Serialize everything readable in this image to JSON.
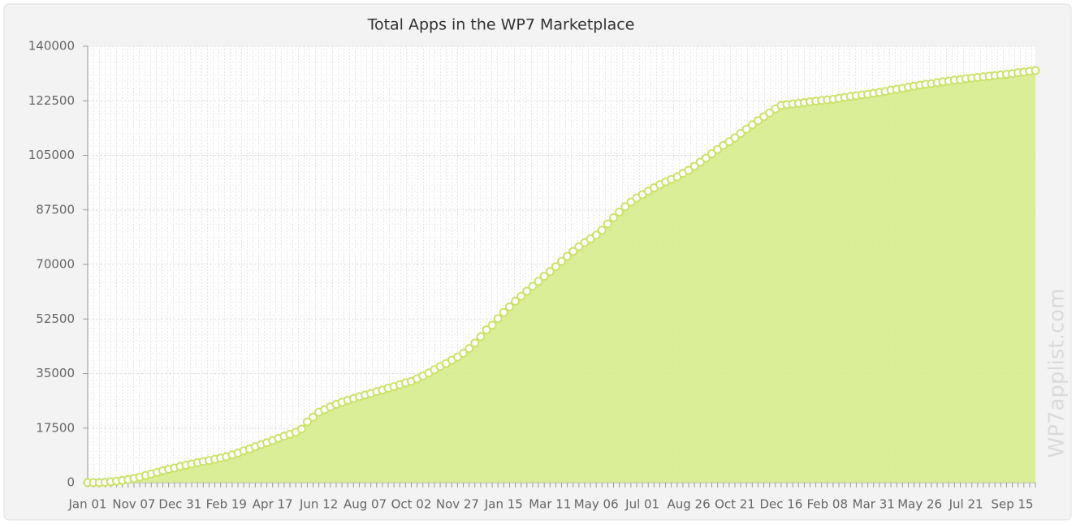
{
  "chart_data": {
    "type": "area",
    "title": "Total Apps in the WP7 Marketplace",
    "watermark": "WP7applist.com",
    "categories": [
      "Jan 01",
      null,
      null,
      null,
      null,
      null,
      null,
      null,
      "Nov 07",
      null,
      null,
      null,
      null,
      null,
      null,
      null,
      "Dec 31",
      null,
      null,
      null,
      null,
      null,
      null,
      null,
      "Feb 19",
      null,
      null,
      null,
      null,
      null,
      null,
      null,
      "Apr 17",
      null,
      null,
      null,
      null,
      null,
      null,
      null,
      "Jun 12",
      null,
      null,
      null,
      null,
      null,
      null,
      null,
      "Aug 07",
      null,
      null,
      null,
      null,
      null,
      null,
      null,
      "Oct 02",
      null,
      null,
      null,
      null,
      null,
      null,
      null,
      "Nov 27",
      null,
      null,
      null,
      null,
      null,
      null,
      null,
      "Jan 15",
      null,
      null,
      null,
      null,
      null,
      null,
      null,
      "Mar 11",
      null,
      null,
      null,
      null,
      null,
      null,
      null,
      "May 06",
      null,
      null,
      null,
      null,
      null,
      null,
      null,
      "Jul 01",
      null,
      null,
      null,
      null,
      null,
      null,
      null,
      "Aug 26",
      null,
      null,
      null,
      null,
      null,
      null,
      null,
      "Oct 21",
      null,
      null,
      null,
      null,
      null,
      null,
      null,
      "Dec 16",
      null,
      null,
      null,
      null,
      null,
      null,
      null,
      "Feb 08",
      null,
      null,
      null,
      null,
      null,
      null,
      null,
      "Mar 31",
      null,
      null,
      null,
      null,
      null,
      null,
      null,
      "May 26",
      null,
      null,
      null,
      null,
      null,
      null,
      null,
      "Jul 21",
      null,
      null,
      null,
      null,
      null,
      null,
      null,
      "Sep 15",
      null,
      null,
      null,
      null
    ],
    "values": [
      0,
      0,
      0,
      100,
      300,
      500,
      700,
      1000,
      1300,
      1800,
      2300,
      2800,
      3300,
      3800,
      4300,
      4700,
      5200,
      5600,
      6000,
      6400,
      6800,
      7100,
      7500,
      7900,
      8300,
      8900,
      9500,
      10200,
      10800,
      11500,
      12200,
      12800,
      13500,
      14200,
      14900,
      15500,
      16200,
      17200,
      19500,
      21000,
      22600,
      23400,
      24300,
      25100,
      25800,
      26400,
      27000,
      27600,
      28100,
      28600,
      29200,
      29700,
      30300,
      30800,
      31400,
      32000,
      32500,
      33300,
      34200,
      35200,
      36200,
      37200,
      38200,
      39300,
      40300,
      41500,
      43000,
      44800,
      46800,
      49000,
      50500,
      52600,
      54600,
      56400,
      58200,
      59800,
      61400,
      63000,
      64600,
      66200,
      67700,
      69300,
      71000,
      72600,
      74200,
      75700,
      77000,
      78200,
      79400,
      81000,
      83000,
      85000,
      86800,
      88500,
      90000,
      91300,
      92400,
      93500,
      94600,
      95600,
      96500,
      97300,
      98100,
      99200,
      100200,
      101500,
      102800,
      104100,
      105500,
      106900,
      108200,
      109400,
      110600,
      112000,
      113400,
      114800,
      116100,
      117400,
      118600,
      119900,
      121000,
      121300,
      121500,
      121700,
      121900,
      122200,
      122400,
      122600,
      122800,
      123000,
      123300,
      123600,
      123900,
      124100,
      124400,
      124600,
      124900,
      125200,
      125500,
      125900,
      126200,
      126500,
      126900,
      127200,
      127500,
      127800,
      128000,
      128300,
      128600,
      128800,
      129100,
      129300,
      129600,
      129800,
      130000,
      130200,
      130400,
      130600,
      130800,
      131000,
      131200,
      131500,
      131700,
      132000,
      132200
    ],
    "color": "#d6ec8c",
    "line_color": "#c9e36a",
    "ylim": [
      0,
      140000
    ],
    "yticks": [
      0,
      17500,
      35000,
      52500,
      70000,
      87500,
      105000,
      122500,
      140000
    ],
    "grid": true
  }
}
